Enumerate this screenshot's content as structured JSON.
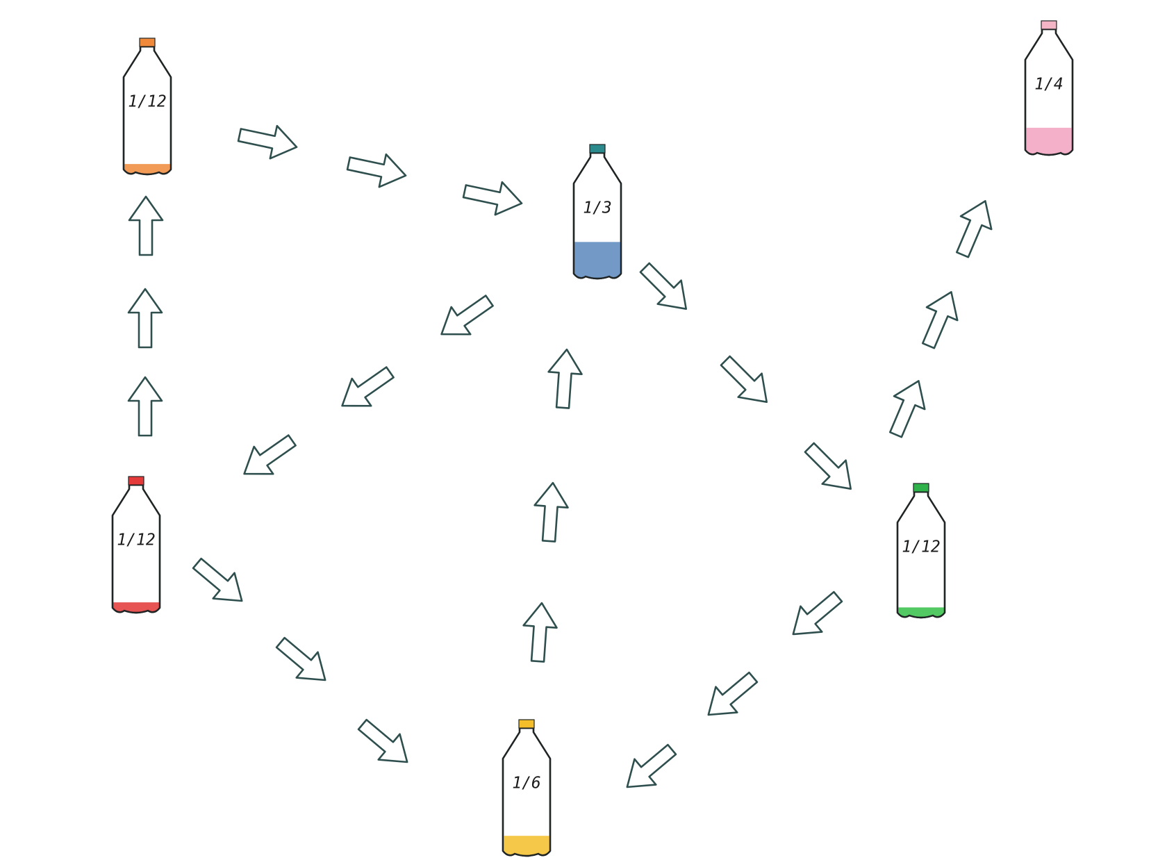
{
  "bottles": [
    {
      "id": "orange",
      "label": "1/12",
      "cap_color": "#f08a3a",
      "liquid_color": "#f08a3a",
      "fill": 0.1
    },
    {
      "id": "teal",
      "label": "1/3",
      "cap_color": "#2a8a8c",
      "liquid_color": "#5b87bd",
      "fill": 0.38
    },
    {
      "id": "pink",
      "label": "1/4",
      "cap_color": "#f4b6c6",
      "liquid_color": "#f2a2c0",
      "fill": 0.28
    },
    {
      "id": "red",
      "label": "1/12",
      "cap_color": "#e53a3a",
      "liquid_color": "#e23636",
      "fill": 0.1
    },
    {
      "id": "green",
      "label": "1/12",
      "cap_color": "#2fb24a",
      "liquid_color": "#34c046",
      "fill": 0.1
    },
    {
      "id": "yellow",
      "label": "1/6",
      "cap_color": "#f4be2a",
      "liquid_color": "#f4be2a",
      "fill": 0.2
    }
  ],
  "colors": {
    "arrow_stroke": "#2f4f4f",
    "bottle_stroke": "#1f2424"
  }
}
